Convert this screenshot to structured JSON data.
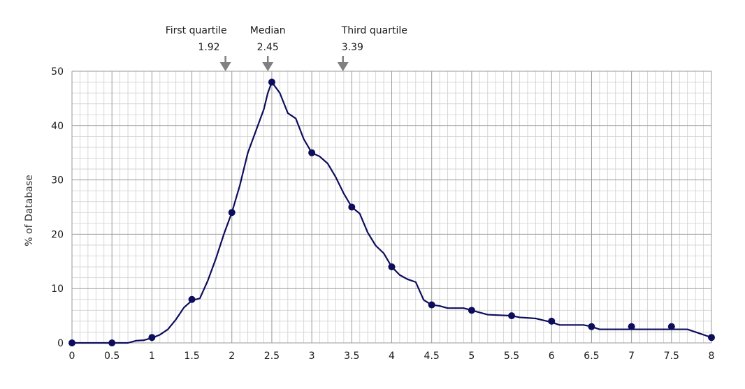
{
  "chart_data": {
    "type": "line",
    "title": "",
    "xlabel": "",
    "ylabel": "% of Database",
    "xlim": [
      0,
      8
    ],
    "ylim": [
      0,
      50
    ],
    "x_ticks": [
      "0",
      "0.5",
      "1",
      "1.5",
      "2",
      "2.5",
      "3",
      "3.5",
      "4",
      "4.5",
      "5",
      "5.5",
      "6",
      "6.5",
      "7",
      "7.5",
      "8"
    ],
    "y_ticks": [
      "0",
      "10",
      "20",
      "30",
      "40",
      "50"
    ],
    "grid": true,
    "colors": {
      "line": "#0d0d5e",
      "marker": "#0d0d5e",
      "grid": "#b4b4b4",
      "arrow": "#808080"
    },
    "series": [
      {
        "curve": [
          [
            0,
            0
          ],
          [
            0.5,
            0
          ],
          [
            0.7,
            0
          ],
          [
            0.8,
            0.4
          ],
          [
            0.9,
            0.5
          ],
          [
            1,
            0.9
          ],
          [
            1.1,
            1.5
          ],
          [
            1.2,
            2.5
          ],
          [
            1.3,
            4.3
          ],
          [
            1.4,
            6.5
          ],
          [
            1.5,
            7.8
          ],
          [
            1.6,
            8.2
          ],
          [
            1.7,
            11.5
          ],
          [
            1.8,
            15.5
          ],
          [
            1.9,
            20
          ],
          [
            2,
            24
          ],
          [
            2.1,
            29
          ],
          [
            2.2,
            35
          ],
          [
            2.3,
            39
          ],
          [
            2.4,
            43
          ],
          [
            2.45,
            46
          ],
          [
            2.5,
            48
          ],
          [
            2.6,
            46
          ],
          [
            2.7,
            42.3
          ],
          [
            2.8,
            41.3
          ],
          [
            2.9,
            37.5
          ],
          [
            3,
            35
          ],
          [
            3.1,
            34.3
          ],
          [
            3.2,
            33
          ],
          [
            3.3,
            30.5
          ],
          [
            3.4,
            27.5
          ],
          [
            3.5,
            25
          ],
          [
            3.6,
            23.8
          ],
          [
            3.7,
            20.3
          ],
          [
            3.8,
            17.9
          ],
          [
            3.9,
            16.5
          ],
          [
            4,
            14
          ],
          [
            4.1,
            12.5
          ],
          [
            4.2,
            11.7
          ],
          [
            4.3,
            11.2
          ],
          [
            4.4,
            7.9
          ],
          [
            4.5,
            7
          ],
          [
            4.6,
            6.8
          ],
          [
            4.7,
            6.4
          ],
          [
            4.8,
            6.4
          ],
          [
            4.9,
            6.4
          ],
          [
            5,
            6
          ],
          [
            5.2,
            5.2
          ],
          [
            5.5,
            5
          ],
          [
            5.6,
            4.7
          ],
          [
            5.8,
            4.5
          ],
          [
            6,
            3.8
          ],
          [
            6.1,
            3.3
          ],
          [
            6.4,
            3.3
          ],
          [
            6.5,
            3
          ],
          [
            6.6,
            2.5
          ],
          [
            7,
            2.5
          ],
          [
            7.5,
            2.5
          ],
          [
            7.7,
            2.5
          ],
          [
            7.8,
            2
          ],
          [
            8,
            1
          ]
        ],
        "markers": [
          [
            0,
            0
          ],
          [
            0.5,
            0
          ],
          [
            1,
            1
          ],
          [
            1.5,
            8
          ],
          [
            2,
            24
          ],
          [
            2.5,
            48
          ],
          [
            3,
            35
          ],
          [
            3.5,
            25
          ],
          [
            4,
            14
          ],
          [
            4.5,
            7
          ],
          [
            5,
            6
          ],
          [
            5.5,
            5
          ],
          [
            6,
            4
          ],
          [
            6.5,
            3
          ],
          [
            7,
            3
          ],
          [
            7.5,
            3
          ],
          [
            8,
            1
          ]
        ]
      }
    ],
    "annotations": [
      {
        "label": "First quartile",
        "value": "1.92",
        "x": 1.92
      },
      {
        "label": "Median",
        "value": "2.45",
        "x": 2.45
      },
      {
        "label": "Third quartile",
        "value": "3.39",
        "x": 3.39
      }
    ]
  }
}
